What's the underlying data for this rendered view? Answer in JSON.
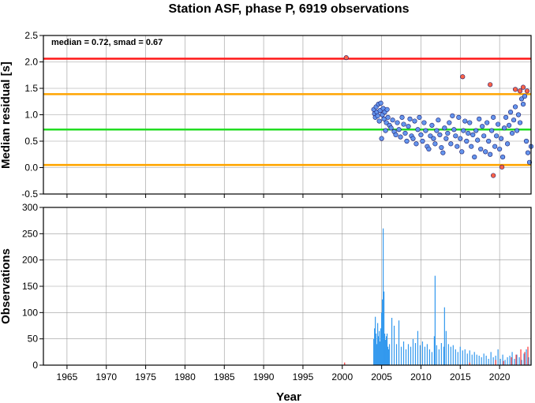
{
  "chart_data": [
    {
      "type": "scatter",
      "title": "Station ASF, phase P, 6919 observations",
      "xlabel": "",
      "ylabel": "Median residual [s]",
      "xlim": [
        1962,
        2024
      ],
      "ylim": [
        -0.5,
        2.5
      ],
      "y_ticks": [
        "-0.5",
        "0.0",
        "0.5",
        "1.0",
        "1.5",
        "2.0",
        "2.5"
      ],
      "annotation": "median = 0.72, smad = 0.67",
      "grid": true,
      "reference_lines": [
        {
          "y": 2.06,
          "color": "#ff2020"
        },
        {
          "y": 1.39,
          "color": "#ffa500"
        },
        {
          "y": 0.72,
          "color": "#22dd22"
        },
        {
          "y": 0.05,
          "color": "#ffa500"
        }
      ],
      "series": [
        {
          "color": "#6495ed",
          "x": [
            2004.0,
            2004.1,
            2004.2,
            2004.3,
            2004.4,
            2004.5,
            2004.6,
            2004.7,
            2004.8,
            2004.9,
            2005.0,
            2005.1,
            2005.2,
            2005.3,
            2005.4,
            2005.5,
            2005.6,
            2005.7,
            2005.8,
            2006.0,
            2006.2,
            2006.4,
            2006.6,
            2006.8,
            2007.0,
            2007.2,
            2007.4,
            2007.6,
            2007.8,
            2008.0,
            2008.2,
            2008.4,
            2008.6,
            2008.8,
            2009.0,
            2009.2,
            2009.4,
            2009.6,
            2009.8,
            2010.0,
            2010.2,
            2010.4,
            2010.6,
            2010.8,
            2011.0,
            2011.2,
            2011.4,
            2011.6,
            2011.8,
            2012.0,
            2012.2,
            2012.4,
            2012.6,
            2012.8,
            2013.0,
            2013.2,
            2013.4,
            2013.6,
            2013.8,
            2014.0,
            2014.2,
            2014.4,
            2014.6,
            2014.8,
            2015.0,
            2015.2,
            2015.4,
            2015.6,
            2015.8,
            2016.0,
            2016.2,
            2016.4,
            2016.6,
            2016.8,
            2017.0,
            2017.2,
            2017.4,
            2017.6,
            2017.8,
            2018.0,
            2018.2,
            2018.4,
            2018.6,
            2018.8,
            2019.0,
            2019.2,
            2019.4,
            2019.6,
            2019.8,
            2020.0,
            2020.2,
            2020.4,
            2020.6,
            2020.8,
            2021.0,
            2021.2,
            2021.4,
            2021.6,
            2021.8,
            2022.0,
            2022.2,
            2022.4,
            2022.6,
            2022.8,
            2023.0,
            2023.2,
            2023.4,
            2023.6,
            2023.8,
            2024.0
          ],
          "y": [
            1.1,
            1.02,
            0.95,
            1.15,
            1.05,
            0.98,
            1.2,
            0.88,
            1.08,
            1.22,
            0.55,
            1.0,
            1.12,
            0.92,
            1.05,
            0.7,
            0.85,
            1.1,
            0.95,
            0.8,
            0.75,
            0.9,
            0.68,
            0.62,
            0.85,
            0.72,
            0.58,
            0.95,
            0.82,
            0.65,
            0.5,
            0.78,
            0.92,
            0.6,
            0.55,
            0.88,
            0.45,
            0.72,
            0.95,
            0.62,
            0.5,
            0.85,
            0.7,
            0.4,
            0.35,
            0.6,
            0.8,
            0.55,
            0.45,
            0.7,
            0.9,
            0.62,
            0.38,
            0.28,
            0.75,
            0.55,
            0.65,
            0.85,
            0.45,
            0.98,
            0.72,
            0.6,
            0.4,
            0.95,
            0.55,
            0.3,
            0.7,
            0.88,
            0.5,
            0.65,
            0.85,
            0.4,
            0.62,
            0.2,
            0.7,
            0.52,
            0.92,
            0.35,
            0.78,
            0.6,
            0.3,
            0.85,
            0.5,
            0.25,
            0.7,
            0.95,
            0.4,
            0.6,
            0.82,
            0.35,
            0.55,
            0.2,
            0.75,
            0.95,
            0.45,
            0.8,
            1.05,
            0.65,
            0.9,
            1.15,
            0.7,
            1.0,
            0.85,
            1.3,
            1.2,
            1.35,
            0.5,
            0.28,
            0.1,
            0.4
          ]
        },
        {
          "color": "#ff6347",
          "x": [
            2000.5,
            2015.3,
            2018.8,
            2019.2,
            2020.3,
            2022.0,
            2022.6,
            2023.0,
            2023.5
          ],
          "y": [
            2.08,
            1.72,
            1.57,
            -0.15,
            0.01,
            1.48,
            1.45,
            1.52,
            1.45
          ]
        }
      ]
    },
    {
      "type": "bar",
      "title": "",
      "xlabel": "Year",
      "ylabel": "Observations",
      "xlim": [
        1962,
        2024
      ],
      "ylim": [
        0,
        300
      ],
      "y_ticks": [
        "0",
        "50",
        "100",
        "150",
        "200",
        "250",
        "300"
      ],
      "x_ticks": [
        "1965",
        "1970",
        "1975",
        "1980",
        "1985",
        "1990",
        "1995",
        "2000",
        "2005",
        "2010",
        "2015",
        "2020"
      ],
      "grid": true,
      "series": [
        {
          "color": "#3399ee",
          "x": [
            2004.0,
            2004.1,
            2004.2,
            2004.3,
            2004.4,
            2004.5,
            2004.6,
            2004.7,
            2004.8,
            2004.9,
            2005.0,
            2005.1,
            2005.2,
            2005.3,
            2005.4,
            2005.5,
            2005.6,
            2005.7,
            2005.8,
            2005.9,
            2006.0,
            2006.3,
            2006.6,
            2006.9,
            2007.2,
            2007.5,
            2007.8,
            2008.1,
            2008.4,
            2008.7,
            2009.0,
            2009.3,
            2009.6,
            2009.9,
            2010.2,
            2010.5,
            2010.8,
            2011.1,
            2011.4,
            2011.7,
            2011.8,
            2012.0,
            2012.3,
            2012.6,
            2012.9,
            2013.0,
            2013.2,
            2013.5,
            2013.8,
            2014.1,
            2014.4,
            2014.7,
            2015.0,
            2015.3,
            2015.6,
            2015.9,
            2016.2,
            2016.5,
            2016.8,
            2017.1,
            2017.4,
            2017.7,
            2018.0,
            2018.3,
            2018.6,
            2018.9,
            2019.2,
            2019.5,
            2019.8,
            2020.1,
            2020.4,
            2020.7,
            2021.0,
            2021.3,
            2021.6,
            2021.9,
            2022.2,
            2022.5,
            2022.8,
            2023.1,
            2023.4,
            2023.7,
            2024.0
          ],
          "values": [
            50,
            70,
            92,
            60,
            40,
            80,
            55,
            65,
            45,
            70,
            100,
            125,
            260,
            140,
            60,
            48,
            55,
            60,
            35,
            30,
            40,
            90,
            75,
            40,
            85,
            35,
            45,
            30,
            40,
            35,
            50,
            42,
            65,
            38,
            45,
            35,
            40,
            30,
            25,
            55,
            170,
            38,
            30,
            42,
            35,
            110,
            65,
            40,
            35,
            38,
            30,
            25,
            35,
            28,
            30,
            22,
            28,
            20,
            25,
            20,
            18,
            15,
            22,
            18,
            12,
            25,
            15,
            18,
            30,
            12,
            20,
            10,
            15,
            18,
            25,
            12,
            20,
            15,
            10,
            22,
            30,
            15,
            10
          ]
        },
        {
          "color": "#ff3333",
          "x": [
            2000.3,
            2016.2,
            2019.5,
            2020.5,
            2021.5,
            2022.1,
            2022.7,
            2023.2,
            2023.6
          ],
          "values": [
            5,
            5,
            10,
            8,
            15,
            20,
            30,
            25,
            35
          ]
        }
      ]
    }
  ]
}
